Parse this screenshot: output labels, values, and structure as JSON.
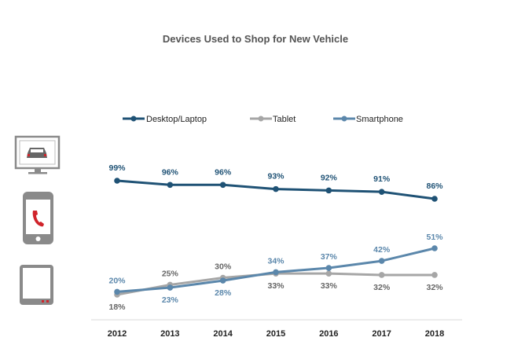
{
  "chart_data": {
    "type": "line",
    "title": "Devices Used to Shop for New Vehicle",
    "xlabel": "",
    "ylabel": "",
    "ylim": [
      0,
      100
    ],
    "grid": false,
    "legend_position": "top",
    "categories": [
      "2012",
      "2013",
      "2014",
      "2015",
      "2016",
      "2017",
      "2018"
    ],
    "series": [
      {
        "name": "Desktop/Laptop",
        "color": "#1f5275",
        "values": [
          99,
          96,
          96,
          93,
          92,
          91,
          86
        ],
        "labels": [
          "99%",
          "96%",
          "96%",
          "93%",
          "92%",
          "91%",
          "86%"
        ]
      },
      {
        "name": "Tablet",
        "color": "#a6a6a6",
        "values": [
          18,
          25,
          30,
          33,
          33,
          32,
          32
        ],
        "labels": [
          "18%",
          "25%",
          "30%",
          "33%",
          "33%",
          "32%",
          "32%"
        ]
      },
      {
        "name": "Smartphone",
        "color": "#5b87ab",
        "values": [
          20,
          23,
          28,
          34,
          37,
          42,
          51
        ],
        "labels": [
          "20%",
          "23%",
          "28%",
          "34%",
          "37%",
          "42%",
          "51%"
        ]
      }
    ]
  },
  "icons": [
    {
      "name": "desktop-monitor-icon"
    },
    {
      "name": "smartphone-icon"
    },
    {
      "name": "tablet-icon"
    }
  ]
}
